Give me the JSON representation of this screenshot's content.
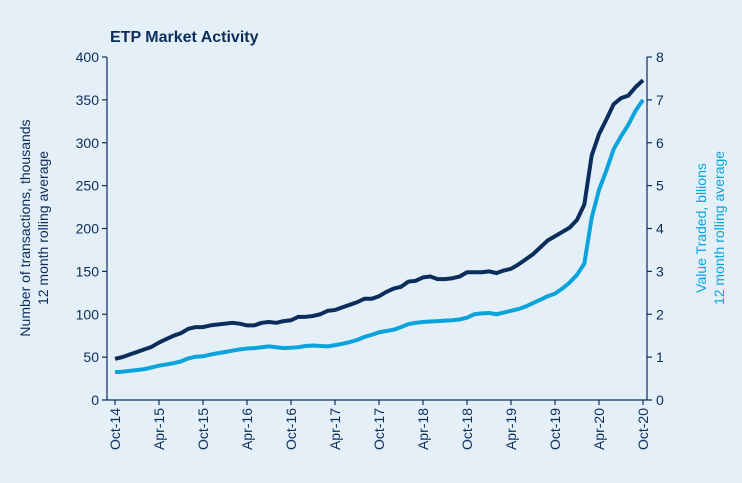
{
  "chart_data": {
    "type": "line",
    "title": "ETP Market Activity",
    "ylabel": [
      "Number of transactions, thousands",
      "12 month rolling average"
    ],
    "y2label": [
      "Value Traded, bllions",
      "12 month rolling average"
    ],
    "categories": [
      "Oct-14",
      null,
      null,
      null,
      null,
      null,
      "Apr-15",
      null,
      null,
      null,
      null,
      null,
      "Oct-15",
      null,
      null,
      null,
      null,
      null,
      "Apr-16",
      null,
      null,
      null,
      null,
      null,
      "Oct-16",
      null,
      null,
      null,
      null,
      null,
      "Apr-17",
      null,
      null,
      null,
      null,
      null,
      "Oct-17",
      null,
      null,
      null,
      null,
      null,
      "Apr-18",
      null,
      null,
      null,
      null,
      null,
      "Oct-18",
      null,
      null,
      null,
      null,
      null,
      "Apr-19",
      null,
      null,
      null,
      null,
      null,
      "Oct-19",
      null,
      null,
      null,
      null,
      null,
      "Apr-20",
      null,
      null,
      null,
      null,
      null,
      "Oct-20"
    ],
    "series": [
      {
        "name": "Number of transactions",
        "color": "#0b2d5b",
        "axis": "y",
        "values": [
          48,
          50,
          53,
          56,
          59,
          62,
          67,
          71,
          75,
          78,
          83,
          85,
          85,
          87,
          88,
          89,
          90,
          89,
          87,
          87,
          90,
          91,
          90,
          92,
          93,
          97,
          97,
          98,
          100,
          104,
          105,
          108,
          111,
          114,
          118,
          118,
          121,
          126,
          130,
          132,
          138,
          139,
          143,
          144,
          141,
          141,
          142,
          144,
          149,
          149,
          149,
          150,
          148,
          151,
          153,
          158,
          164,
          170,
          178,
          186,
          191,
          196,
          201,
          210,
          228,
          285,
          310,
          327,
          345,
          352,
          355,
          365,
          373
        ]
      },
      {
        "name": "Value Traded",
        "color": "#0ba3dc",
        "axis": "y2",
        "values": [
          0.65,
          0.66,
          0.68,
          0.7,
          0.72,
          0.76,
          0.8,
          0.83,
          0.86,
          0.9,
          0.97,
          1.01,
          1.02,
          1.06,
          1.09,
          1.12,
          1.15,
          1.18,
          1.2,
          1.21,
          1.23,
          1.25,
          1.23,
          1.21,
          1.22,
          1.23,
          1.26,
          1.27,
          1.26,
          1.25,
          1.28,
          1.31,
          1.35,
          1.4,
          1.47,
          1.52,
          1.58,
          1.61,
          1.64,
          1.7,
          1.77,
          1.8,
          1.82,
          1.83,
          1.84,
          1.85,
          1.86,
          1.88,
          1.92,
          2.0,
          2.02,
          2.03,
          2.0,
          2.04,
          2.08,
          2.12,
          2.18,
          2.26,
          2.34,
          2.42,
          2.48,
          2.6,
          2.74,
          2.92,
          3.18,
          4.25,
          4.9,
          5.35,
          5.85,
          6.15,
          6.42,
          6.75,
          7.0
        ]
      }
    ],
    "ylim": [
      0,
      400
    ],
    "yticks": [
      0,
      50,
      100,
      150,
      200,
      250,
      300,
      350,
      400
    ],
    "y2lim": [
      0,
      8
    ],
    "y2ticks": [
      0,
      1,
      2,
      3,
      4,
      5,
      6,
      7,
      8
    ]
  }
}
